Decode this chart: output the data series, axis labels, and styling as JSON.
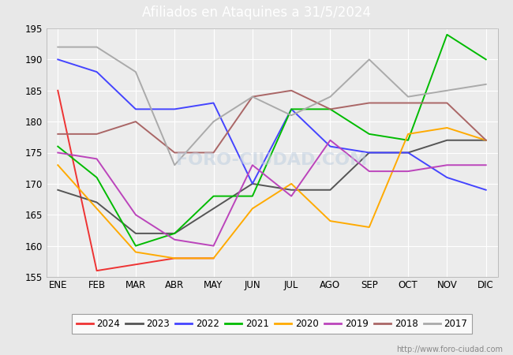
{
  "title": "Afiliados en Ataquines a 31/5/2024",
  "months": [
    "ENE",
    "FEB",
    "MAR",
    "ABR",
    "MAY",
    "JUN",
    "JUL",
    "AGO",
    "SEP",
    "OCT",
    "NOV",
    "DIC"
  ],
  "ylim": [
    155,
    195
  ],
  "yticks": [
    155,
    160,
    165,
    170,
    175,
    180,
    185,
    190,
    195
  ],
  "series": {
    "2024": {
      "values": [
        185,
        156,
        157,
        158,
        158,
        null,
        null,
        null,
        null,
        null,
        null,
        null
      ],
      "color": "#ee3333"
    },
    "2023": {
      "values": [
        169,
        167,
        162,
        162,
        166,
        170,
        169,
        169,
        175,
        175,
        177,
        177
      ],
      "color": "#555555"
    },
    "2022": {
      "values": [
        190,
        188,
        182,
        182,
        183,
        170,
        182,
        176,
        175,
        175,
        171,
        169
      ],
      "color": "#4444ff"
    },
    "2021": {
      "values": [
        176,
        171,
        160,
        162,
        168,
        168,
        182,
        182,
        178,
        177,
        194,
        190
      ],
      "color": "#00bb00"
    },
    "2020": {
      "values": [
        173,
        166,
        159,
        158,
        158,
        166,
        170,
        164,
        163,
        178,
        179,
        177
      ],
      "color": "#ffaa00"
    },
    "2019": {
      "values": [
        175,
        174,
        165,
        161,
        160,
        173,
        168,
        177,
        172,
        172,
        173,
        173
      ],
      "color": "#bb44bb"
    },
    "2018": {
      "values": [
        178,
        178,
        180,
        175,
        175,
        184,
        185,
        182,
        183,
        183,
        183,
        177
      ],
      "color": "#aa6666"
    },
    "2017": {
      "values": [
        192,
        192,
        188,
        173,
        180,
        184,
        181,
        184,
        190,
        184,
        185,
        186
      ],
      "color": "#aaaaaa"
    }
  },
  "legend_order": [
    "2024",
    "2023",
    "2022",
    "2021",
    "2020",
    "2019",
    "2018",
    "2017"
  ],
  "title_bg_color": "#4488cc",
  "title_color": "white",
  "outer_bg": "#e8e8e8",
  "plot_bg": "#ececec",
  "grid_color": "#ffffff",
  "watermark": "http://www.foro-ciudad.com",
  "watermark_chart": "FORO-CIUDAD.COM"
}
